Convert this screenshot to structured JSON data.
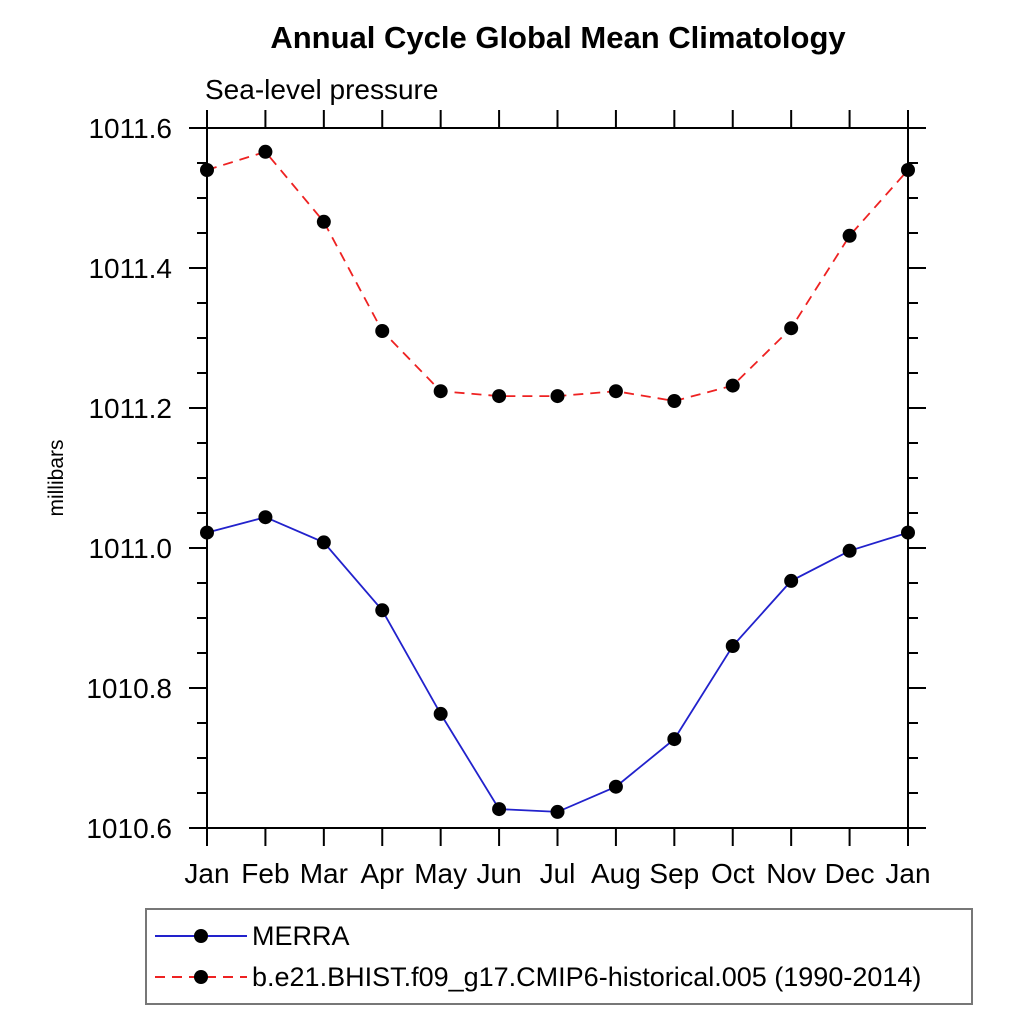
{
  "page": {
    "background_color": "#ffffff"
  },
  "chart_data": {
    "type": "line",
    "title": "Annual Cycle Global Mean Climatology",
    "subtitle": "Sea-level pressure",
    "xlabel": "",
    "ylabel": "millibars",
    "categories": [
      "Jan",
      "Feb",
      "Mar",
      "Apr",
      "May",
      "Jun",
      "Jul",
      "Aug",
      "Sep",
      "Oct",
      "Nov",
      "Dec",
      "Jan"
    ],
    "ylim": [
      1010.6,
      1011.6
    ],
    "ytick_step": 0.2,
    "yminor_step": 0.05,
    "ytick_labels": [
      "1010.6",
      "1010.8",
      "1011.0",
      "1011.2",
      "1011.4",
      "1011.6"
    ],
    "grid": false,
    "legend_position": "bottom-left-box",
    "frame_color": "#000000",
    "series": [
      {
        "name": "MERRA",
        "color": "#2222cc",
        "line_style": "solid",
        "marker": "filled-circle",
        "marker_color": "#000000",
        "values": [
          1011.022,
          1011.044,
          1011.008,
          1010.911,
          1010.763,
          1010.627,
          1010.623,
          1010.659,
          1010.727,
          1010.86,
          1010.953,
          1010.996,
          1011.022
        ]
      },
      {
        "name": "b.e21.BHIST.f09_g17.CMIP6-historical.005 (1990-2014)",
        "color": "#ee2222",
        "line_style": "dashed",
        "marker": "filled-circle",
        "marker_color": "#000000",
        "values": [
          1011.54,
          1011.566,
          1011.466,
          1011.31,
          1011.224,
          1011.217,
          1011.217,
          1011.224,
          1011.21,
          1011.232,
          1011.314,
          1011.446,
          1011.54
        ]
      }
    ]
  }
}
